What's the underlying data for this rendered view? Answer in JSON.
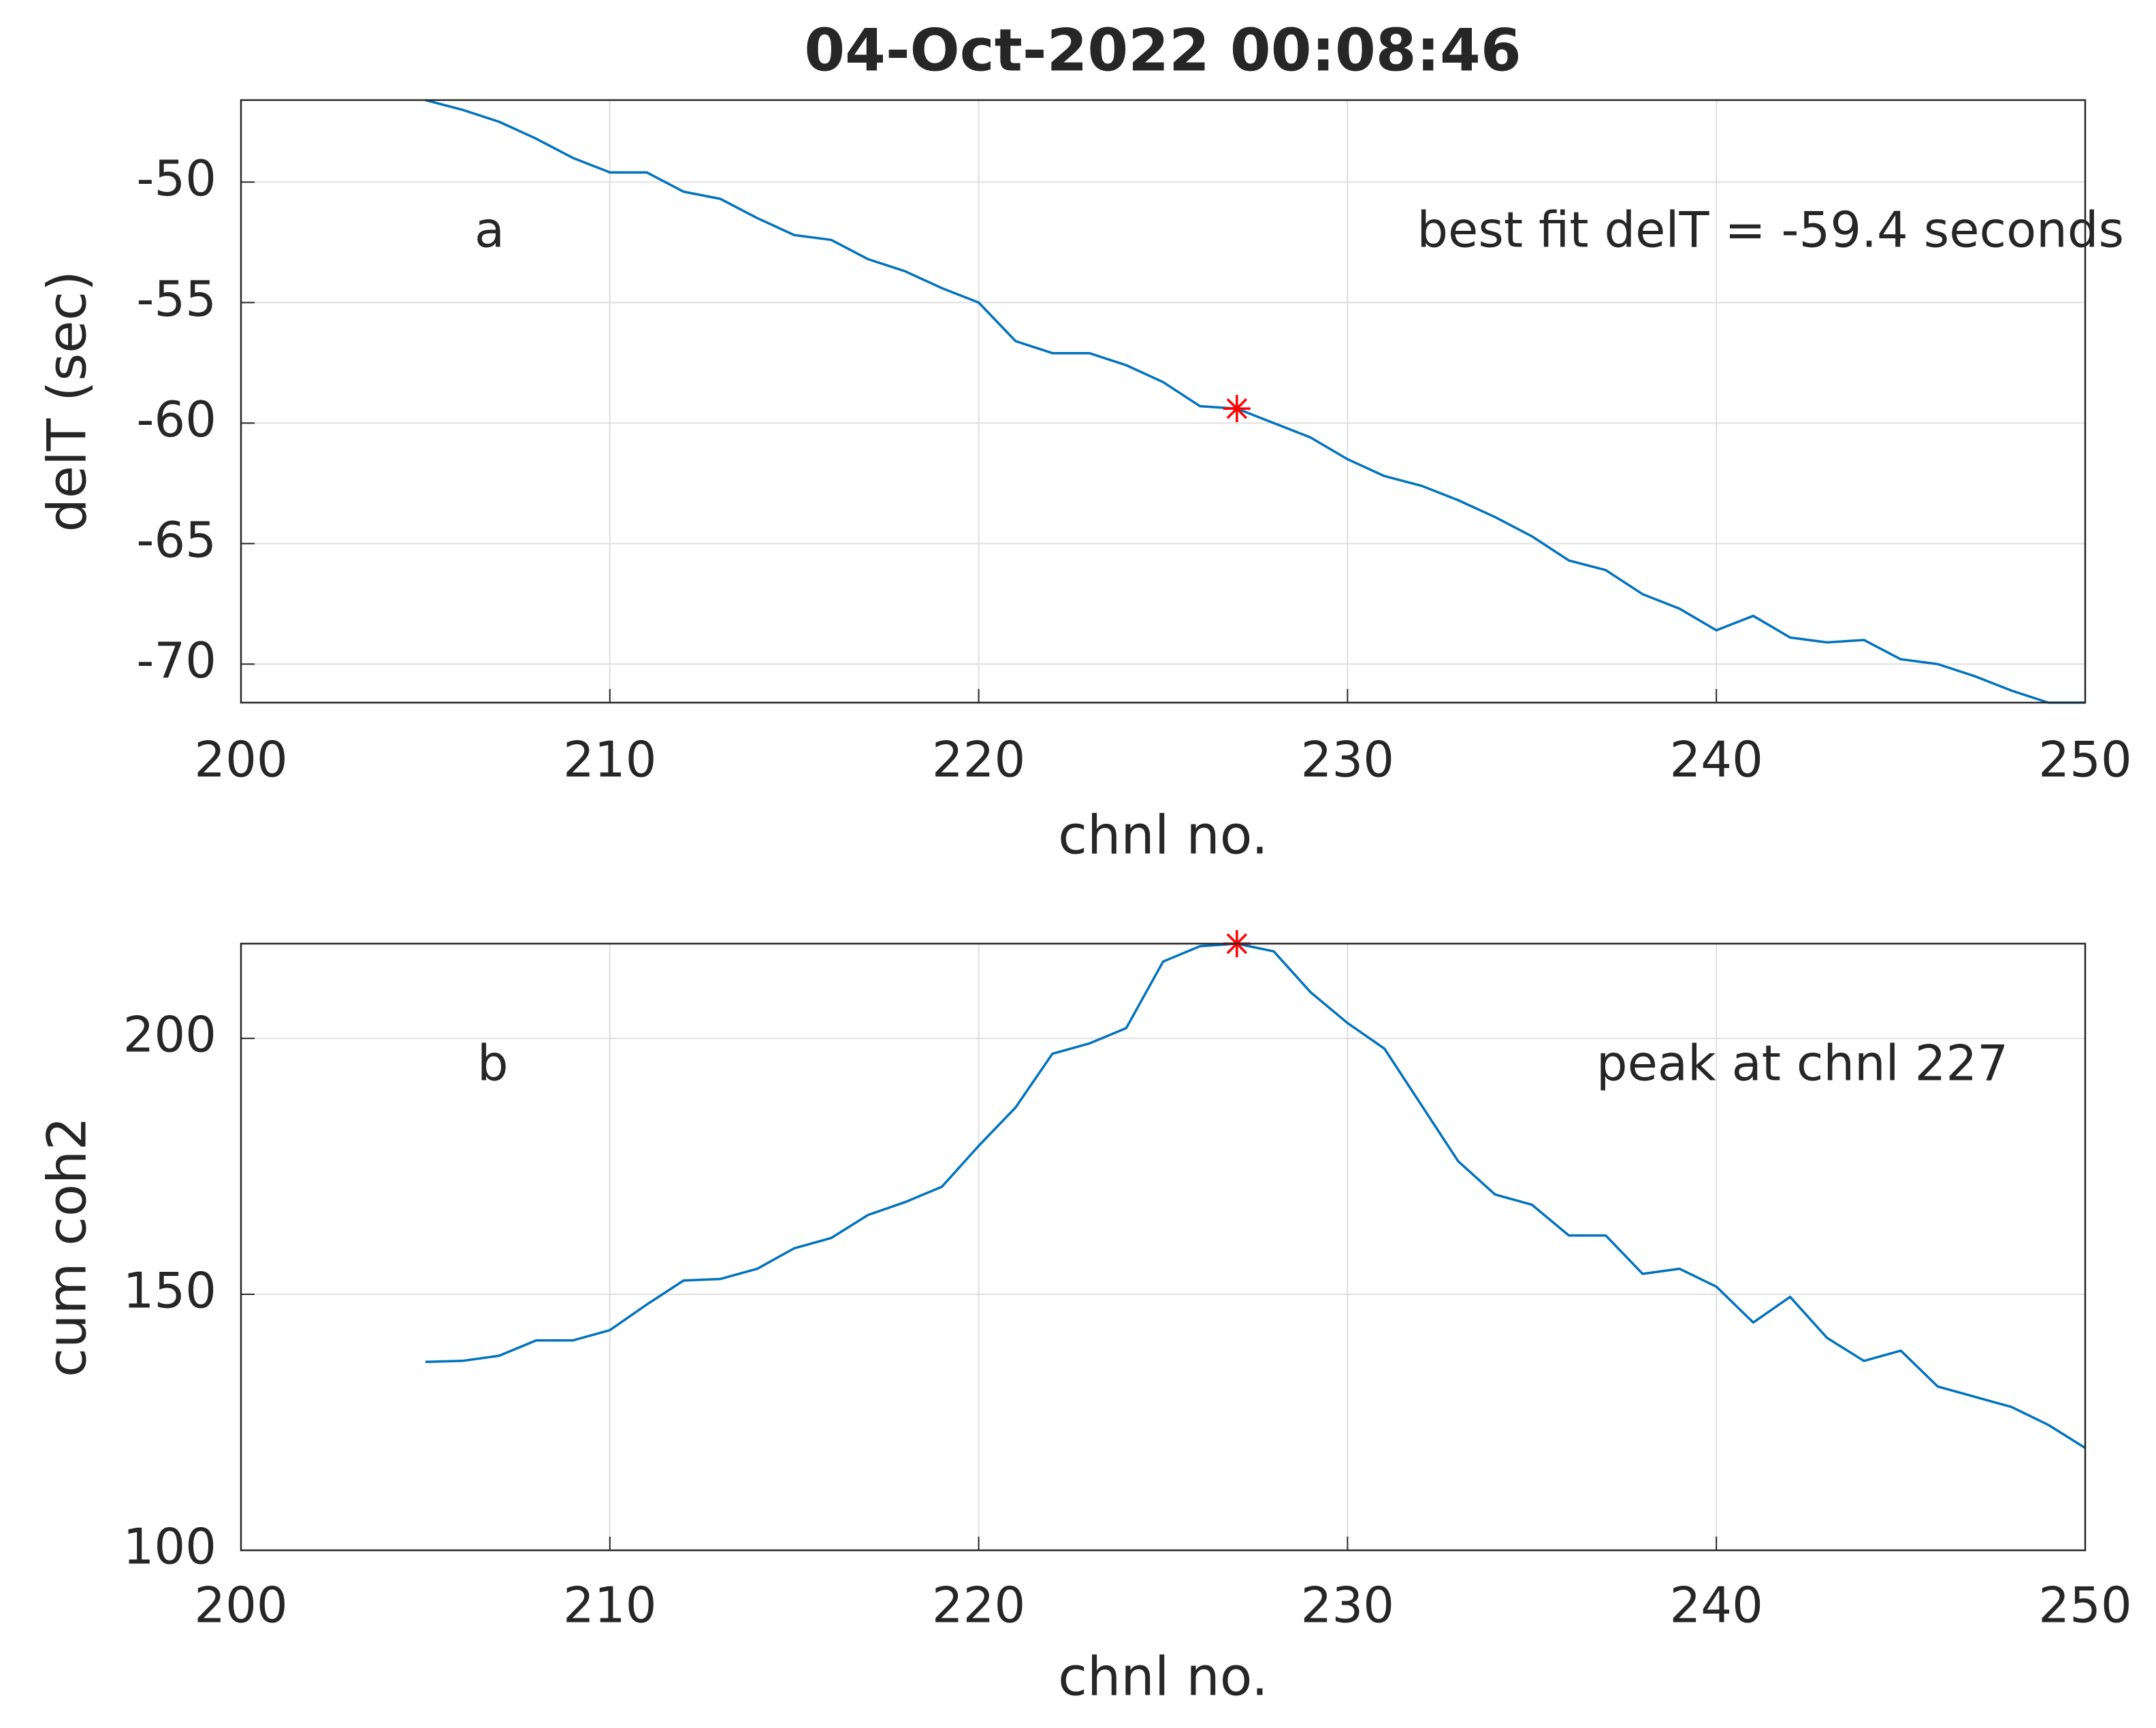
{
  "chart_data": [
    {
      "type": "line",
      "title": "04-Oct-2022 00:08:46",
      "xlabel": "chnl no.",
      "ylabel": "delT (sec)",
      "x": [
        205,
        206,
        207,
        208,
        209,
        210,
        211,
        212,
        213,
        214,
        215,
        216,
        217,
        218,
        219,
        220,
        221,
        222,
        223,
        224,
        225,
        226,
        227,
        228,
        229,
        230,
        231,
        232,
        233,
        234,
        235,
        236,
        237,
        238,
        239,
        240,
        241,
        242,
        243,
        244,
        245,
        246,
        247,
        248,
        249,
        250
      ],
      "series": [
        {
          "color": "#0072bd",
          "values": [
            -46.6,
            -47.0,
            -47.5,
            -48.2,
            -49.0,
            -49.6,
            -49.6,
            -50.4,
            -50.7,
            -51.5,
            -52.2,
            -52.4,
            -53.2,
            -53.7,
            -54.4,
            -55.0,
            -56.6,
            -57.1,
            -57.1,
            -57.6,
            -58.3,
            -59.3,
            -59.4,
            -60.0,
            -60.6,
            -61.5,
            -62.2,
            -62.6,
            -63.2,
            -63.9,
            -64.7,
            -65.7,
            -66.1,
            -67.1,
            -67.7,
            -68.6,
            -68.0,
            -68.9,
            -69.1,
            -69.0,
            -69.8,
            -70.0,
            -70.5,
            -71.1,
            -71.6,
            -71.6
          ]
        }
      ],
      "highlight": {
        "x": 227,
        "y": -59.4,
        "color": "#ff0000"
      },
      "annotations": [
        "a",
        "best fit delT = -59.4 seconds"
      ],
      "xlim": [
        200,
        250
      ],
      "xticks": [
        200,
        210,
        220,
        230,
        240,
        250
      ],
      "ylim": [
        -71.6,
        -46.6
      ],
      "yticks": [
        -70,
        -65,
        -60,
        -55,
        -50
      ],
      "grid": true
    },
    {
      "type": "line",
      "xlabel": "chnl no.",
      "ylabel": "cum coh2",
      "x": [
        205,
        206,
        207,
        208,
        209,
        210,
        211,
        212,
        213,
        214,
        215,
        216,
        217,
        218,
        219,
        220,
        221,
        222,
        223,
        224,
        225,
        226,
        227,
        228,
        229,
        230,
        231,
        232,
        233,
        234,
        235,
        236,
        237,
        238,
        239,
        240,
        241,
        242,
        243,
        244,
        245,
        246,
        247,
        248,
        249,
        250
      ],
      "series": [
        {
          "color": "#0072bd",
          "values": [
            136.8,
            137,
            138,
            141,
            141,
            143,
            148,
            152.7,
            153,
            155,
            159,
            161,
            165.5,
            168,
            171,
            179,
            186.5,
            197,
            199,
            202,
            215,
            218,
            218.5,
            217,
            209,
            203,
            198,
            187,
            176,
            169.5,
            167.5,
            161.5,
            161.5,
            154,
            155,
            151.5,
            144.5,
            149.5,
            141.5,
            137,
            139,
            132,
            130,
            128,
            124.5,
            120
          ]
        }
      ],
      "highlight": {
        "x": 227,
        "y": 218.5,
        "color": "#ff0000"
      },
      "annotations": [
        "b",
        "peak at chnl 227"
      ],
      "xlim": [
        200,
        250
      ],
      "xticks": [
        200,
        210,
        220,
        230,
        240,
        250
      ],
      "ylim": [
        100,
        218.5
      ],
      "yticks": [
        100,
        150,
        200
      ],
      "grid": true
    }
  ]
}
